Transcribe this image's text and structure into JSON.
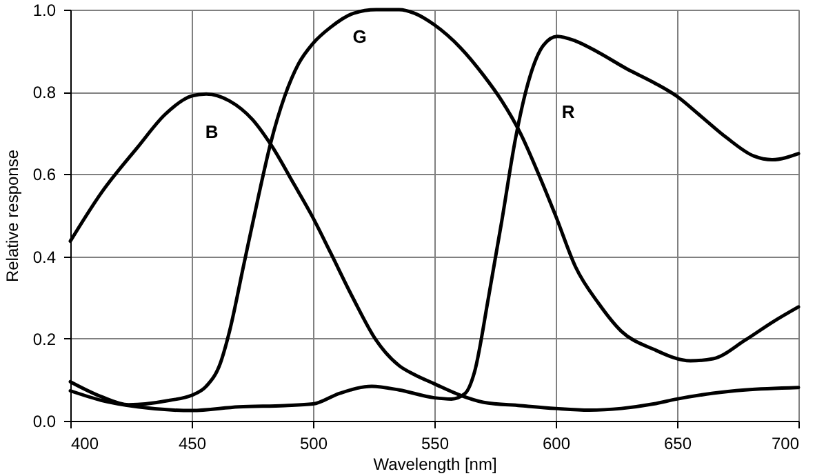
{
  "chart_data": {
    "type": "line",
    "xlabel": "Wavelength [nm]",
    "ylabel": "Relative response",
    "xlim": [
      400,
      700
    ],
    "xticks": [
      400,
      450,
      500,
      550,
      600,
      650,
      700
    ],
    "ylim": [
      0,
      1.0
    ],
    "yticks": [
      {
        "value": 0,
        "label": "0.0"
      },
      0.2,
      0.4,
      0.6,
      0.8,
      {
        "value": 1.0,
        "label": "1.0"
      }
    ],
    "grid": true,
    "line_style": "solid",
    "marker": "none",
    "series": [
      {
        "name": "B",
        "color": "#000000",
        "x": [
          400,
          412.7,
          427.8,
          439,
          450,
          456,
          465.6,
          475,
          482.6,
          492,
          499.6,
          507.2,
          516.6,
          526,
          535.5,
          541.9,
          550,
          560.8,
          570.3,
          585.4,
          600,
          613.8,
          627,
          640.3,
          650,
          664.8,
          678,
          700
        ],
        "values": [
          0.437,
          0.554,
          0.666,
          0.745,
          0.79,
          0.795,
          0.778,
          0.733,
          0.672,
          0.577,
          0.498,
          0.409,
          0.297,
          0.196,
          0.134,
          0.112,
          0.09,
          0.062,
          0.045,
          0.037,
          0.03,
          0.026,
          0.03,
          0.041,
          0.053,
          0.067,
          0.075,
          0.081
        ]
      },
      {
        "name": "G",
        "color": "#000000",
        "x": [
          400,
          412.7,
          424,
          441,
          450,
          456,
          461.8,
          465.6,
          471.3,
          477,
          482.6,
          488.3,
          494,
          500,
          507.2,
          516.6,
          526,
          535.5,
          541.9,
          550,
          560.8,
          570.3,
          577.8,
          585.4,
          593,
          600,
          608.1,
          617.6,
          627,
          640.3,
          655.5,
          664.8,
          678,
          689.6,
          700
        ],
        "values": [
          0.095,
          0.059,
          0.039,
          0.05,
          0.062,
          0.084,
          0.14,
          0.218,
          0.375,
          0.532,
          0.677,
          0.789,
          0.868,
          0.918,
          0.957,
          0.991,
          1.0,
          1.0,
          0.991,
          0.963,
          0.907,
          0.84,
          0.778,
          0.7,
          0.599,
          0.498,
          0.375,
          0.286,
          0.218,
          0.174,
          0.146,
          0.151,
          0.196,
          0.241,
          0.277
        ]
      },
      {
        "name": "R",
        "color": "#000000",
        "x": [
          400,
          412.7,
          427.8,
          450,
          469.4,
          488.3,
          500,
          511,
          524.2,
          535.5,
          550,
          557,
          562.7,
          566.5,
          572.2,
          577.8,
          583.5,
          589.2,
          594.9,
          600.6,
          608.1,
          617.6,
          629,
          640.3,
          650,
          659,
          670.3,
          681.6,
          689.2,
          700
        ],
        "values": [
          0.073,
          0.05,
          0.034,
          0.025,
          0.034,
          0.037,
          0.041,
          0.067,
          0.084,
          0.075,
          0.056,
          0.053,
          0.067,
          0.118,
          0.297,
          0.487,
          0.689,
          0.834,
          0.913,
          0.935,
          0.924,
          0.896,
          0.857,
          0.823,
          0.789,
          0.745,
          0.689,
          0.644,
          0.635,
          0.65
        ]
      }
    ]
  }
}
